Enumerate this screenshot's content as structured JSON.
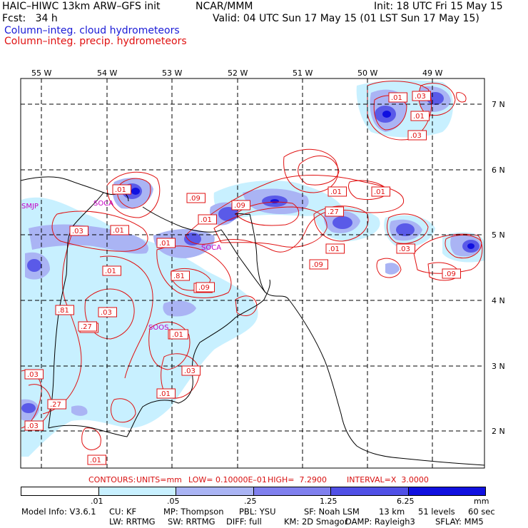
{
  "header": {
    "model": "HAIC–HIWC 13km ARW–GFS init",
    "org": "NCAR/MMM",
    "init": "Init: 18 UTC Fri 15 May 15",
    "fcst": "Fcst:   34 h",
    "valid": "Valid: 04 UTC Sun 17 May 15 (01 LST Sun 17 May 15)",
    "field_cloud": "Column–integ. cloud hydrometeors",
    "field_precip": "Column–integ. precip. hydrometeors",
    "color_cloud": "#1a1ad6",
    "color_precip": "#e01010"
  },
  "map": {
    "lon_labels": [
      "55 W",
      "54 W",
      "53 W",
      "52 W",
      "51 W",
      "50 W",
      "49 W"
    ],
    "lat_labels": [
      "7 N",
      "6 N",
      "5 N",
      "4 N",
      "3 N",
      "2 N"
    ],
    "stations": [
      "SMJP",
      "SOCA",
      "SOCA",
      "SOOS"
    ],
    "contour_labels": [
      ".01",
      ".03",
      ".01",
      ".03",
      ".01",
      ".09",
      ".03",
      ".01",
      ".01",
      ".09",
      ".01",
      ".81",
      ".01",
      ".01",
      ".27",
      ".01",
      ".09",
      ".03",
      ".01",
      ".09",
      ".01",
      ".03",
      ".27",
      ".09",
      ".81",
      ".03",
      ".27",
      ".01",
      ".03",
      ".01",
      ".03",
      ".27",
      ".09",
      ".01"
    ]
  },
  "contours_info": {
    "label": "CONTOURS:",
    "units": "UNITS=mm",
    "low": "LOW= 0.10000E–01",
    "high": "HIGH=  7.2900",
    "interval": "INTERVAL=X  3.0000"
  },
  "colorbar": {
    "ticks": [
      ".01",
      ".05",
      ".25",
      "1.25",
      "6.25"
    ],
    "unit": "mm",
    "colors": [
      "#ffffff",
      "#c8f0ff",
      "#aab4f4",
      "#8080ee",
      "#5050e6",
      "#1010e0"
    ]
  },
  "model_info": {
    "line1": [
      "Model Info: V3.6.1",
      "CU: KF",
      "MP: Thompson",
      "PBL: YSU",
      "SF: Noah LSM",
      "13 km",
      "51 levels",
      "60 sec"
    ],
    "line2": [
      "LW: RRTMG",
      "SW: RRTMG",
      "DIFF: full",
      "KM: 2D Smagor",
      "DAMP: Rayleigh3",
      "SFLAY: MM5"
    ]
  }
}
